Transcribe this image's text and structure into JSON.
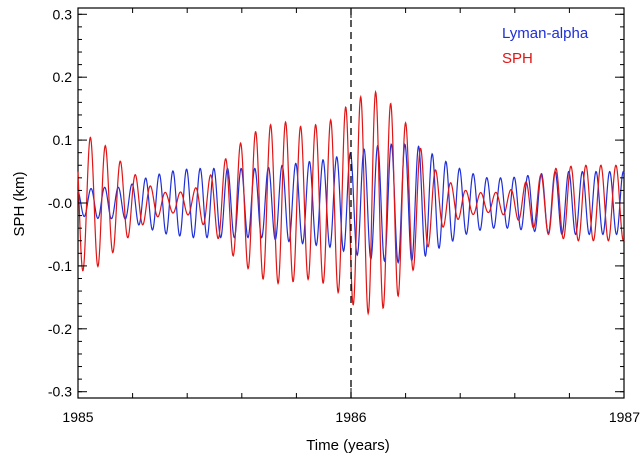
{
  "chart_data": {
    "type": "line",
    "xlabel": "Time (years)",
    "ylabel": "SPH (km)",
    "xlim": [
      1985,
      1987
    ],
    "ylim": [
      -0.31,
      0.31
    ],
    "x_ticks": [
      1985,
      1986,
      1987
    ],
    "x_tick_labels": [
      "1985",
      "1986",
      "1987"
    ],
    "y_ticks": [
      -0.3,
      -0.2,
      -0.1,
      0.0,
      0.1,
      0.2,
      0.3
    ],
    "y_tick_labels": [
      "-0.3",
      "-0.2",
      "-0.1",
      "-0.0",
      "0.1",
      "0.2",
      "0.3"
    ],
    "legend_position": "top-right",
    "grid": false,
    "reference_line": {
      "x": 1986,
      "style": "dashed",
      "color": "#000000"
    },
    "series": [
      {
        "name": "Lyman-alpha",
        "color": "#1f2fd6",
        "x": [
          1985.0,
          1985.08,
          1985.17,
          1985.25,
          1985.33,
          1985.42,
          1985.5,
          1985.58,
          1985.67,
          1985.75,
          1985.83,
          1985.92,
          1986.0,
          1986.08,
          1986.17,
          1986.25,
          1986.33,
          1986.42,
          1986.5,
          1986.58,
          1986.67,
          1986.75,
          1986.83,
          1986.92,
          1987.0
        ],
        "envelope": [
          0.02,
          0.025,
          0.025,
          0.04,
          0.05,
          0.055,
          0.055,
          0.055,
          0.055,
          0.06,
          0.065,
          0.07,
          0.08,
          0.09,
          0.095,
          0.09,
          0.07,
          0.05,
          0.04,
          0.04,
          0.045,
          0.05,
          0.05,
          0.05,
          0.05
        ],
        "period_years": 0.05,
        "phase": 0.3
      },
      {
        "name": "SPH",
        "color": "#e01515",
        "x": [
          1985.0,
          1985.08,
          1985.17,
          1985.25,
          1985.33,
          1985.42,
          1985.5,
          1985.58,
          1985.67,
          1985.75,
          1985.83,
          1985.92,
          1986.0,
          1986.08,
          1986.17,
          1986.25,
          1986.33,
          1986.42,
          1986.5,
          1986.58,
          1986.67,
          1986.75,
          1986.83,
          1986.92,
          1987.0
        ],
        "envelope": [
          0.11,
          0.1,
          0.06,
          0.03,
          0.015,
          0.02,
          0.05,
          0.09,
          0.12,
          0.13,
          0.12,
          0.13,
          0.16,
          0.18,
          0.15,
          0.09,
          0.04,
          0.02,
          0.015,
          0.02,
          0.04,
          0.055,
          0.06,
          0.06,
          0.06
        ],
        "period_years": 0.055,
        "phase": 1.1
      }
    ]
  }
}
